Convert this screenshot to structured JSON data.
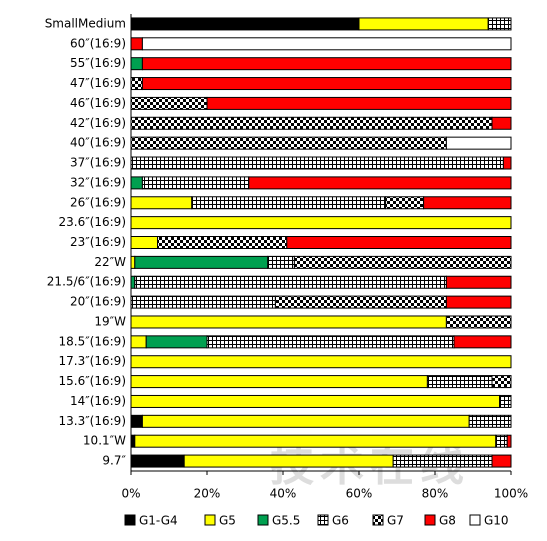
{
  "chart_data": {
    "type": "stacked-bar-horizontal",
    "categories": [
      "SmallMedium",
      "60″(16:9)",
      "55″(16:9)",
      "47″(16:9)",
      "46″(16:9)",
      "42″(16:9)",
      "40″(16:9)",
      "37″(16:9)",
      "32″(16:9)",
      "26″(16:9)",
      "23.6″(16:9)",
      "23″(16:9)",
      "22″W",
      "21.5/6″(16:9)",
      "20″(16:9)",
      "19″W",
      "18.5″(16:9)",
      "17.3″(16:9)",
      "15.6″(16:9)",
      "14″(16:9)",
      "13.3″(16:9)",
      "10.1″W",
      "9.7″"
    ],
    "series": [
      {
        "name": "G1-G4",
        "color": "#000000",
        "pattern": "solid",
        "values": [
          60,
          0,
          0,
          0,
          0,
          0,
          0,
          0,
          0,
          0,
          0,
          0,
          0,
          0,
          0,
          0,
          0,
          0,
          0,
          0,
          3,
          1,
          14
        ]
      },
      {
        "name": "G5",
        "color": "#ffff00",
        "pattern": "solid",
        "values": [
          34,
          0,
          0,
          0,
          0,
          0,
          0,
          0,
          0,
          16,
          100,
          7,
          1,
          0,
          0,
          83,
          4,
          100,
          78,
          97,
          86,
          95,
          55
        ]
      },
      {
        "name": "G5.5",
        "color": "#00a050",
        "pattern": "solid",
        "values": [
          0,
          0,
          3,
          0,
          0,
          0,
          0,
          0,
          3,
          0,
          0,
          0,
          35,
          1,
          0,
          0,
          16,
          0,
          0,
          0,
          0,
          0,
          0
        ]
      },
      {
        "name": "G6",
        "color": "#000000",
        "pattern": "grid",
        "values": [
          6,
          0,
          0,
          0,
          0,
          0,
          0,
          98,
          28,
          51,
          0,
          0,
          7,
          82,
          38,
          0,
          65,
          0,
          17,
          3,
          11,
          3,
          26
        ]
      },
      {
        "name": "G7",
        "color": "#33aaff",
        "pattern": "checker",
        "values": [
          0,
          0,
          0,
          3,
          20,
          95,
          83,
          0,
          0,
          10,
          0,
          34,
          57,
          0,
          45,
          17,
          0,
          0,
          5,
          0,
          0,
          0,
          0
        ]
      },
      {
        "name": "G8",
        "color": "#ff0000",
        "pattern": "solid",
        "values": [
          0,
          3,
          97,
          97,
          80,
          5,
          0,
          2,
          69,
          23,
          0,
          59,
          0,
          17,
          17,
          0,
          15,
          0,
          0,
          0,
          0,
          1,
          5
        ]
      },
      {
        "name": "G10",
        "color": "#7030a0",
        "pattern": "hatch",
        "values": [
          0,
          97,
          0,
          0,
          0,
          0,
          17,
          0,
          0,
          0,
          0,
          0,
          0,
          0,
          0,
          0,
          0,
          0,
          0,
          0,
          0,
          0,
          0
        ]
      }
    ],
    "xlim": [
      0,
      100
    ],
    "xticks": [
      {
        "value": 0,
        "label": "0%"
      },
      {
        "value": 20,
        "label": "20%"
      },
      {
        "value": 40,
        "label": "40%"
      },
      {
        "value": 60,
        "label": "60%"
      },
      {
        "value": 80,
        "label": "80%"
      },
      {
        "value": 100,
        "label": "100%"
      }
    ],
    "legend": "bottom",
    "watermark": "技术在线"
  }
}
